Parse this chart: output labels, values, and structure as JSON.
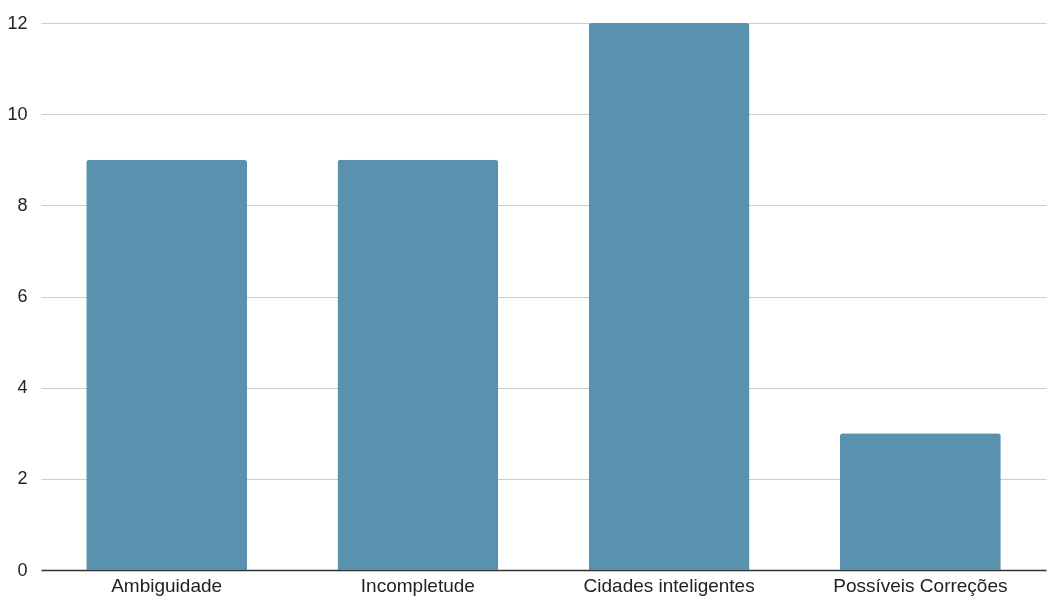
{
  "chart_data": {
    "type": "bar",
    "categories": [
      "Ambiguidade",
      "Incompletude",
      "Cidades inteligentes",
      "Possíveis Correções"
    ],
    "values": [
      9,
      9,
      12,
      3
    ],
    "color": "#5a91ae",
    "ylim": [
      0,
      12
    ],
    "yticks": [
      0,
      2,
      4,
      6,
      8,
      10,
      12
    ],
    "grid": "y"
  }
}
